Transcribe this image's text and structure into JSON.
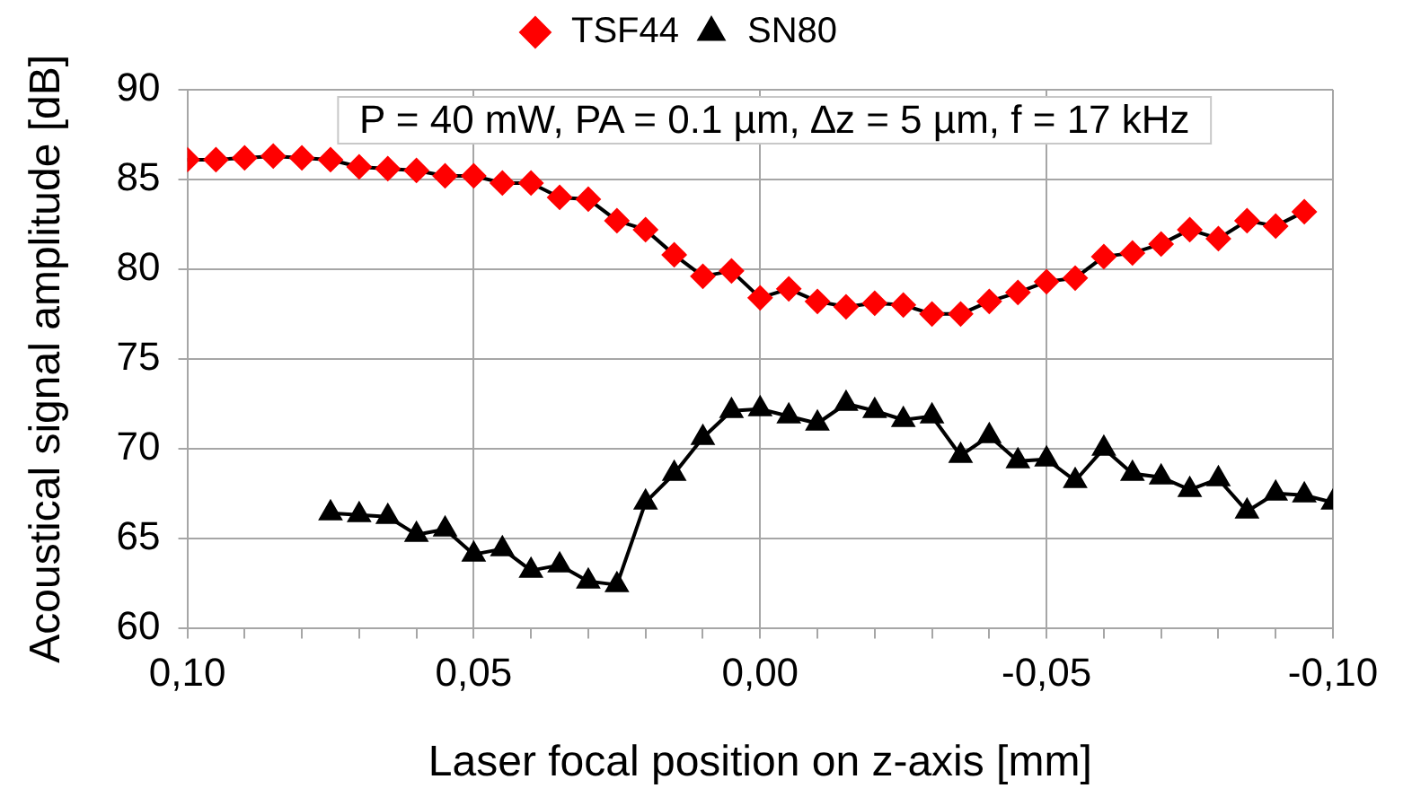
{
  "chart_data": {
    "type": "line",
    "xlabel": "Laser focal position on z-axis [mm]",
    "ylabel": "Acoustical signal amplitude [dB]",
    "annotations": [
      "P = 40 mW, PA = 0.1 µm, ∆z = 5 µm, f = 17 kHz"
    ],
    "xlim": [
      0.1,
      -0.1
    ],
    "xticks": [
      {
        "value": 0.1,
        "label": "0,10"
      },
      {
        "value": 0.09,
        "label": null
      },
      {
        "value": 0.08,
        "label": null
      },
      {
        "value": 0.07,
        "label": null
      },
      {
        "value": 0.06,
        "label": null
      },
      {
        "value": 0.05,
        "label": "0,05"
      },
      {
        "value": 0.04,
        "label": null
      },
      {
        "value": 0.03,
        "label": null
      },
      {
        "value": 0.02,
        "label": null
      },
      {
        "value": 0.01,
        "label": null
      },
      {
        "value": 0,
        "label": "0,00"
      },
      {
        "value": -0.01,
        "label": null
      },
      {
        "value": -0.02,
        "label": null
      },
      {
        "value": -0.03,
        "label": null
      },
      {
        "value": -0.04,
        "label": null
      },
      {
        "value": -0.05,
        "label": "-0,05"
      },
      {
        "value": -0.06,
        "label": null
      },
      {
        "value": -0.07,
        "label": null
      },
      {
        "value": -0.08,
        "label": null
      },
      {
        "value": -0.09,
        "label": null
      },
      {
        "value": -0.1,
        "label": "-0,10"
      }
    ],
    "ylim": [
      60,
      90
    ],
    "yticks": [
      60,
      65,
      70,
      75,
      80,
      85,
      90
    ],
    "grid": true,
    "legend": "top",
    "series": [
      {
        "name": "TSF44",
        "color": "#ff0000",
        "marker": "diamond",
        "x": [
          0.1,
          0.095,
          0.09,
          0.085,
          0.08,
          0.075,
          0.07,
          0.065,
          0.06,
          0.055,
          0.05,
          0.045,
          0.04,
          0.035,
          0.03,
          0.025,
          0.02,
          0.015,
          0.01,
          0.005,
          0,
          -0.005,
          -0.01,
          -0.015,
          -0.02,
          -0.025,
          -0.03,
          -0.035,
          -0.04,
          -0.045,
          -0.05,
          -0.055,
          -0.06,
          -0.065,
          -0.07,
          -0.075,
          -0.08,
          -0.085,
          -0.09,
          -0.095
        ],
        "values": [
          86.1,
          86.1,
          86.2,
          86.3,
          86.2,
          86.1,
          85.7,
          85.6,
          85.5,
          85.2,
          85.2,
          84.8,
          84.8,
          84.0,
          83.9,
          82.7,
          82.2,
          80.8,
          79.6,
          79.9,
          78.4,
          78.9,
          78.2,
          77.9,
          78.1,
          78.0,
          77.5,
          77.5,
          78.2,
          78.7,
          79.3,
          79.5,
          80.7,
          80.9,
          81.4,
          82.2,
          81.7,
          82.7,
          82.4,
          83.2
        ]
      },
      {
        "name": "SN80",
        "color": "#000000",
        "marker": "triangle",
        "x": [
          0.075,
          0.07,
          0.065,
          0.06,
          0.055,
          0.05,
          0.045,
          0.04,
          0.035,
          0.03,
          0.025,
          0.02,
          0.015,
          0.01,
          0.005,
          0,
          -0.005,
          -0.01,
          -0.015,
          -0.02,
          -0.025,
          -0.03,
          -0.035,
          -0.04,
          -0.045,
          -0.05,
          -0.055,
          -0.06,
          -0.065,
          -0.07,
          -0.075,
          -0.08,
          -0.085,
          -0.09,
          -0.095,
          -0.1
        ],
        "values": [
          66.4,
          66.3,
          66.2,
          65.2,
          65.5,
          64.1,
          64.4,
          63.2,
          63.5,
          62.6,
          62.4,
          67.0,
          68.6,
          70.6,
          72.1,
          72.2,
          71.8,
          71.4,
          72.5,
          72.1,
          71.6,
          71.8,
          69.6,
          70.7,
          69.3,
          69.4,
          68.2,
          70.0,
          68.6,
          68.4,
          67.7,
          68.3,
          66.5,
          67.5,
          67.4,
          67.0
        ]
      }
    ]
  }
}
